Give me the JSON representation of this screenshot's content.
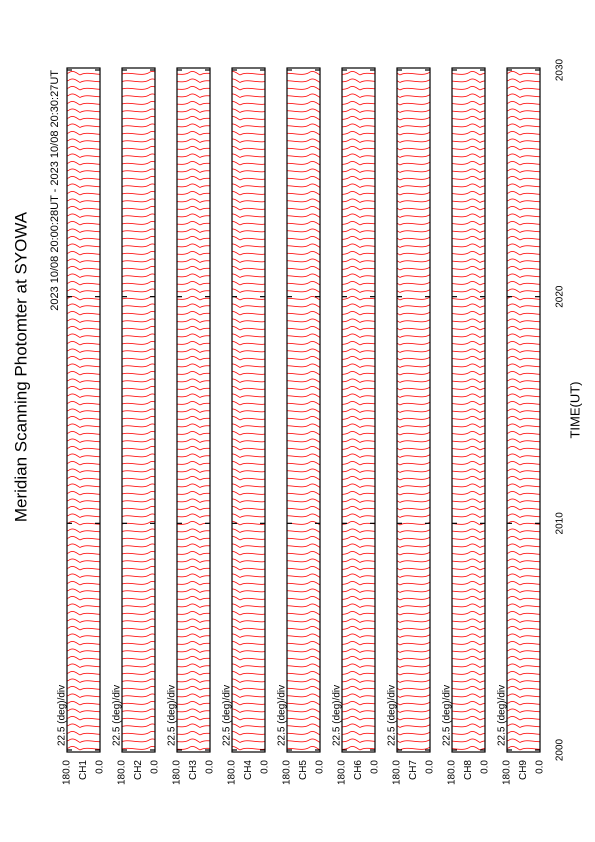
{
  "title": "Meridian Scanning Photomter at SYOWA",
  "subtitle": "2023 10/08 20:00:28UT - 2023 10/08 20:30:27UT",
  "chart_data": {
    "type": "line",
    "xlabel": "TIME(UT)",
    "color": "#ff0000",
    "xlim": [
      2000,
      2030
    ],
    "xticks": [
      2000,
      2010,
      2020,
      2030
    ],
    "panels": [
      {
        "label": "CH1",
        "scale": "22.5 (deg)/div",
        "ylim": [
          0,
          180
        ],
        "yticks": [
          {
            "value": 0,
            "label": "0.0"
          },
          {
            "value": 180,
            "label": "180.0"
          }
        ]
      },
      {
        "label": "CH2",
        "scale": "22.5 (deg)/div",
        "ylim": [
          0,
          180
        ],
        "yticks": [
          {
            "value": 0,
            "label": "0.0"
          },
          {
            "value": 180,
            "label": "180.0"
          }
        ]
      },
      {
        "label": "CH3",
        "scale": "22.5 (deg)/div",
        "ylim": [
          0,
          180
        ],
        "yticks": [
          {
            "value": 0,
            "label": "0.0"
          },
          {
            "value": 180,
            "label": "180.0"
          }
        ]
      },
      {
        "label": "CH4",
        "scale": "22.5 (deg)/div",
        "ylim": [
          0,
          180
        ],
        "yticks": [
          {
            "value": 0,
            "label": "0.0"
          },
          {
            "value": 180,
            "label": "180.0"
          }
        ]
      },
      {
        "label": "CH5",
        "scale": "22.5 (deg)/div",
        "ylim": [
          0,
          180
        ],
        "yticks": [
          {
            "value": 0,
            "label": "0.0"
          },
          {
            "value": 180,
            "label": "180.0"
          }
        ]
      },
      {
        "label": "CH6",
        "scale": "22.5 (deg)/div",
        "ylim": [
          0,
          180
        ],
        "yticks": [
          {
            "value": 0,
            "label": "0.0"
          },
          {
            "value": 180,
            "label": "180.0"
          }
        ]
      },
      {
        "label": "CH7",
        "scale": "22.5 (deg)/div",
        "ylim": [
          0,
          180
        ],
        "yticks": [
          {
            "value": 0,
            "label": "0.0"
          },
          {
            "value": 180,
            "label": "180.0"
          }
        ]
      },
      {
        "label": "CH8",
        "scale": "22.5 (deg)/div",
        "ylim": [
          0,
          180
        ],
        "yticks": [
          {
            "value": 0,
            "label": "0.0"
          },
          {
            "value": 180,
            "label": "180.0"
          }
        ]
      },
      {
        "label": "CH9",
        "scale": "22.5 (deg)/div",
        "ylim": [
          0,
          180
        ],
        "yticks": [
          {
            "value": 0,
            "label": "0.0"
          },
          {
            "value": 180,
            "label": "180.0"
          }
        ]
      }
    ]
  }
}
